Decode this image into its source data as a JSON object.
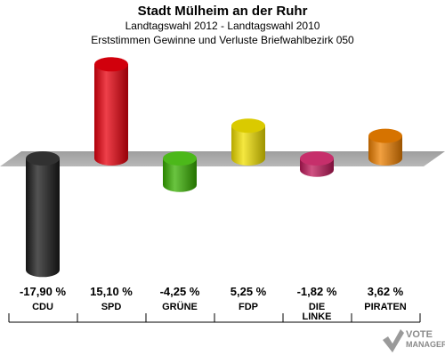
{
  "header": {
    "title": "Stadt Mülheim an der Ruhr",
    "subtitle": "Landtagswahl 2012 - Landtagswahl 2010",
    "subtitle2": "Erststimmen Gewinne und Verluste Briefwahlbezirk 050"
  },
  "chart_data": {
    "type": "bar",
    "title": "Stadt Mülheim an der Ruhr",
    "categories": [
      "CDU",
      "SPD",
      "GRÜNE",
      "FDP",
      "DIE LINKE",
      "PIRATEN"
    ],
    "values": [
      -17.9,
      15.1,
      -4.25,
      5.25,
      -1.82,
      3.62
    ],
    "value_labels": [
      "-17,90 %",
      "15,10 %",
      "-4,25 %",
      "5,25 %",
      "-1,82 %",
      "3,62 %"
    ],
    "category_labels": [
      "CDU",
      "SPD",
      "GRÜNE",
      "FDP",
      "DIE\nLINKE",
      "PIRATEN"
    ],
    "colors": [
      "#1a1a1a",
      "#e8000d",
      "#38b000",
      "#f2e000",
      "#c0185a",
      "#ee8000"
    ],
    "ylim": [
      -20,
      20
    ]
  },
  "logo": {
    "line1": "VOTE",
    "line2": "MANAGER"
  }
}
